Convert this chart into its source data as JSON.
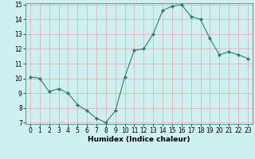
{
  "x": [
    0,
    1,
    2,
    3,
    4,
    5,
    6,
    7,
    8,
    9,
    10,
    11,
    12,
    13,
    14,
    15,
    16,
    17,
    18,
    19,
    20,
    21,
    22,
    23
  ],
  "y": [
    10.1,
    10.0,
    9.1,
    9.3,
    9.0,
    8.2,
    7.8,
    7.3,
    7.0,
    7.8,
    10.1,
    11.9,
    12.0,
    13.0,
    14.6,
    14.9,
    15.0,
    14.2,
    14.0,
    12.7,
    11.6,
    11.8,
    11.6,
    11.35
  ],
  "line_color": "#2e7d6e",
  "marker": "D",
  "marker_size": 2,
  "bg_color": "#cff0f0",
  "grid_color": "#e8b0b0",
  "xlabel": "Humidex (Indice chaleur)",
  "ylim": [
    7,
    15
  ],
  "xlim": [
    -0.5,
    23.5
  ],
  "yticks": [
    7,
    8,
    9,
    10,
    11,
    12,
    13,
    14,
    15
  ],
  "xticks": [
    0,
    1,
    2,
    3,
    4,
    5,
    6,
    7,
    8,
    9,
    10,
    11,
    12,
    13,
    14,
    15,
    16,
    17,
    18,
    19,
    20,
    21,
    22,
    23
  ],
  "tick_fontsize": 5.5,
  "xlabel_fontsize": 6.5,
  "xlabel_fontweight": "bold"
}
